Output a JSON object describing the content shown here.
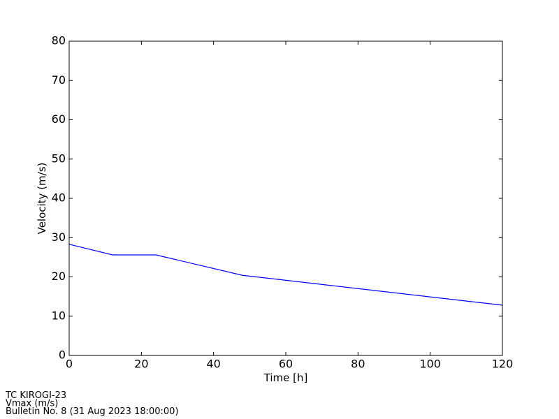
{
  "chart_data": {
    "type": "line",
    "xlabel": "Time [h]",
    "ylabel": "Velocity (m/s)",
    "x": [
      0,
      12,
      24,
      48,
      120
    ],
    "series": [
      {
        "name": "Vmax",
        "color": "#0000ff",
        "values": [
          28.3,
          25.6,
          25.6,
          20.4,
          12.8
        ]
      }
    ],
    "xlim": [
      0,
      120
    ],
    "xticks": [
      0,
      20,
      40,
      60,
      80,
      100,
      120
    ],
    "ylim": [
      0,
      80
    ],
    "yticks": [
      0,
      10,
      20,
      30,
      40,
      50,
      60,
      70,
      80
    ],
    "footer": [
      "TC KIROGI-23",
      "Vmax (m/s)",
      "Bulletin No. 8 (31 Aug 2023  18:00:00)"
    ]
  }
}
